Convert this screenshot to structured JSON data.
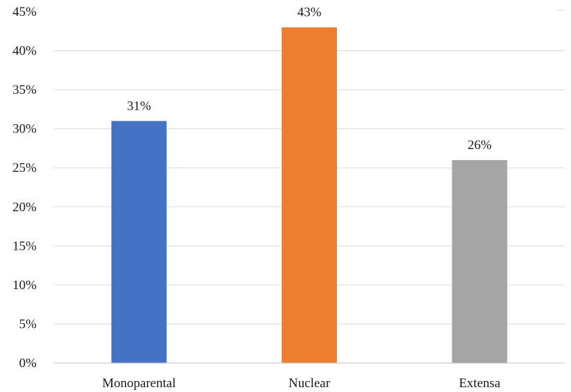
{
  "chart_data": {
    "type": "bar",
    "categories": [
      "Monoparental",
      "Nuclear",
      "Extensa"
    ],
    "values": [
      31,
      43,
      26
    ],
    "data_labels": [
      "31%",
      "43%",
      "26%"
    ],
    "colors": [
      "#4472c4",
      "#ed7d31",
      "#a5a5a5"
    ],
    "y_ticks": [
      "0%",
      "5%",
      "10%",
      "15%",
      "20%",
      "25%",
      "30%",
      "35%",
      "40%",
      "45%"
    ],
    "ylim": [
      0,
      45
    ],
    "grid": true,
    "legend": "none"
  }
}
